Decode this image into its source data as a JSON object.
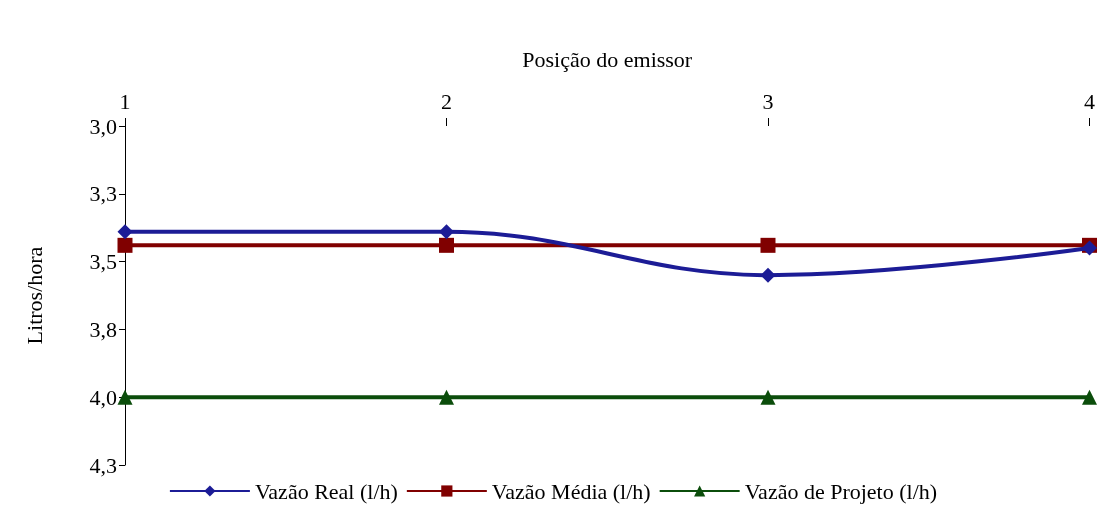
{
  "chart_data": {
    "type": "line",
    "xlabel": "Posição do emissor",
    "ylabel": "Litros/hora",
    "categories": [
      "1",
      "2",
      "3",
      "4"
    ],
    "ylim": [
      4.25,
      3.0
    ],
    "yticks": [
      {
        "value": 3.0,
        "label": "3,0"
      },
      {
        "value": 3.25,
        "label": "3,3"
      },
      {
        "value": 3.5,
        "label": "3,5"
      },
      {
        "value": 3.75,
        "label": "3,8"
      },
      {
        "value": 4.0,
        "label": "4,0"
      },
      {
        "value": 4.25,
        "label": "4,3"
      }
    ],
    "grid": false,
    "legend": "bottom",
    "series": [
      {
        "name": "Vazão Real (l/h)",
        "color": "#1c1c96",
        "marker": "diamond",
        "values": [
          3.39,
          3.39,
          3.55,
          3.45
        ]
      },
      {
        "name": "Vazão Média (l/h)",
        "color": "#800000",
        "marker": "square",
        "values": [
          3.44,
          3.44,
          3.44,
          3.44
        ]
      },
      {
        "name": "Vazão de Projeto (l/h)",
        "color": "#0b4d0b",
        "marker": "triangle",
        "values": [
          4.0,
          4.0,
          4.0,
          4.0
        ]
      }
    ]
  }
}
